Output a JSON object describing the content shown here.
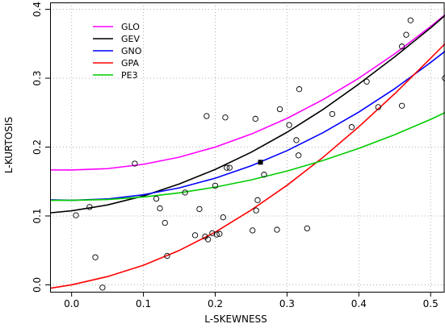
{
  "chart_data": {
    "type": "scatter",
    "title": "",
    "xlabel": "L-SKEWNESS",
    "ylabel": "L-KURTOSIS",
    "xlim": [
      -0.03,
      0.52
    ],
    "ylim": [
      -0.01,
      0.41
    ],
    "xticks": [
      0.0,
      0.1,
      0.2,
      0.3,
      0.4,
      0.5
    ],
    "yticks": [
      0.0,
      0.1,
      0.2,
      0.3,
      0.4
    ],
    "xtick_labels": [
      "0.0",
      "0.1",
      "0.2",
      "0.3",
      "0.4",
      "0.5"
    ],
    "ytick_labels": [
      "0.0",
      "0.1",
      "0.2",
      "0.3",
      "0.4"
    ],
    "grid": true,
    "legend_position": "top-left",
    "series": [
      {
        "name": "GLO",
        "color": "#ff00ff",
        "x": [
          -0.03,
          0.0,
          0.05,
          0.1,
          0.15,
          0.2,
          0.25,
          0.3,
          0.35,
          0.4,
          0.45,
          0.5,
          0.52
        ],
        "y": [
          0.1668,
          0.1667,
          0.1687,
          0.175,
          0.1854,
          0.2,
          0.2188,
          0.2417,
          0.2688,
          0.3,
          0.3354,
          0.375,
          0.392
        ]
      },
      {
        "name": "GEV",
        "color": "#000000",
        "x": [
          -0.03,
          0.0,
          0.05,
          0.1,
          0.15,
          0.2,
          0.25,
          0.3,
          0.35,
          0.4,
          0.45,
          0.5,
          0.52
        ],
        "y": [
          0.1045,
          0.1075,
          0.116,
          0.129,
          0.1465,
          0.1675,
          0.1925,
          0.2215,
          0.2545,
          0.2915,
          0.331,
          0.373,
          0.391
        ]
      },
      {
        "name": "GNO",
        "color": "#0000ff",
        "x": [
          -0.03,
          0.0,
          0.05,
          0.1,
          0.15,
          0.2,
          0.25,
          0.3,
          0.35,
          0.4,
          0.45,
          0.5,
          0.52
        ],
        "y": [
          0.1235,
          0.1227,
          0.1247,
          0.1308,
          0.1408,
          0.1548,
          0.1728,
          0.1948,
          0.2208,
          0.2508,
          0.2848,
          0.3228,
          0.339
        ]
      },
      {
        "name": "GPA",
        "color": "#ff0000",
        "x": [
          -0.03,
          0.0,
          0.05,
          0.1,
          0.15,
          0.2,
          0.25,
          0.3,
          0.35,
          0.4,
          0.45,
          0.5,
          0.52
        ],
        "y": [
          -0.005,
          0.0,
          0.012,
          0.0285,
          0.05,
          0.0765,
          0.1085,
          0.1445,
          0.185,
          0.2295,
          0.2775,
          0.329,
          0.35
        ]
      },
      {
        "name": "PE3",
        "color": "#00cc00",
        "x": [
          -0.03,
          0.0,
          0.05,
          0.1,
          0.15,
          0.2,
          0.25,
          0.3,
          0.35,
          0.4,
          0.45,
          0.5,
          0.52
        ],
        "y": [
          0.1227,
          0.1227,
          0.1239,
          0.1275,
          0.1335,
          0.1418,
          0.1523,
          0.1652,
          0.1805,
          0.1981,
          0.218,
          0.2402,
          0.25
        ]
      }
    ],
    "points": {
      "x": [
        0.006,
        0.025,
        0.033,
        0.043,
        0.088,
        0.118,
        0.123,
        0.13,
        0.133,
        0.158,
        0.172,
        0.178,
        0.186,
        0.188,
        0.19,
        0.196,
        0.2,
        0.206,
        0.202,
        0.211,
        0.214,
        0.216,
        0.22,
        0.252,
        0.256,
        0.257,
        0.259,
        0.268,
        0.286,
        0.29,
        0.303,
        0.313,
        0.316,
        0.317,
        0.328,
        0.363,
        0.39,
        0.411,
        0.427,
        0.46,
        0.46,
        0.466,
        0.472,
        0.52
      ],
      "y": [
        0.101,
        0.113,
        0.04,
        -0.004,
        0.176,
        0.125,
        0.111,
        0.09,
        0.042,
        0.134,
        0.072,
        0.11,
        0.07,
        0.245,
        0.066,
        0.075,
        0.144,
        0.074,
        0.073,
        0.098,
        0.243,
        0.17,
        0.17,
        0.079,
        0.241,
        0.108,
        0.123,
        0.16,
        0.08,
        0.255,
        0.232,
        0.21,
        0.188,
        0.284,
        0.082,
        0.248,
        0.229,
        0.295,
        0.258,
        0.26,
        0.346,
        0.363,
        0.384,
        0.3
      ]
    },
    "marker": {
      "x": 0.263,
      "y": 0.178,
      "shape": "filled-square"
    }
  }
}
